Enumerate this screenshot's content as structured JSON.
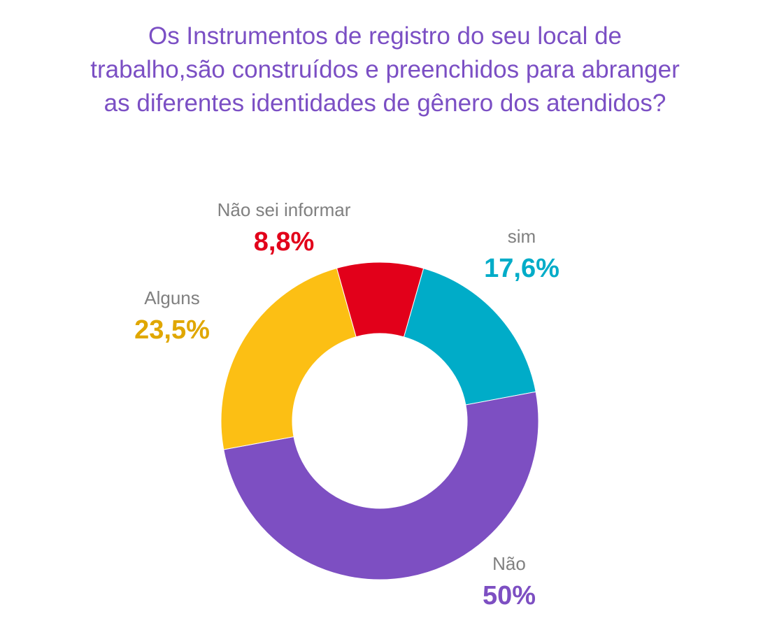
{
  "chart_data": {
    "type": "pie",
    "variant": "donut",
    "title_lines": [
      "Os Instrumentos de registro do seu local de",
      "trabalho,são construídos e preenchidos para abranger",
      "as diferentes identidades de gênero dos atendidos?"
    ],
    "slices": [
      {
        "label": "sim",
        "value": 17.6,
        "value_label": "17,6%",
        "color": "#00acc8",
        "label_color": "#00acc8"
      },
      {
        "label": "Não",
        "value": 50,
        "value_label": "50%",
        "color": "#7d4fc2",
        "label_color": "#7d4fc2"
      },
      {
        "label": "Alguns",
        "value": 23.5,
        "value_label": "23,5%",
        "color": "#fcbf14",
        "label_color": "#e0a700"
      },
      {
        "label": "Não sei informar",
        "value": 8.8,
        "value_label": "8,8%",
        "color": "#e2001a",
        "label_color": "#e2001a"
      }
    ],
    "legend": "none",
    "label_text_color": "#808080"
  }
}
